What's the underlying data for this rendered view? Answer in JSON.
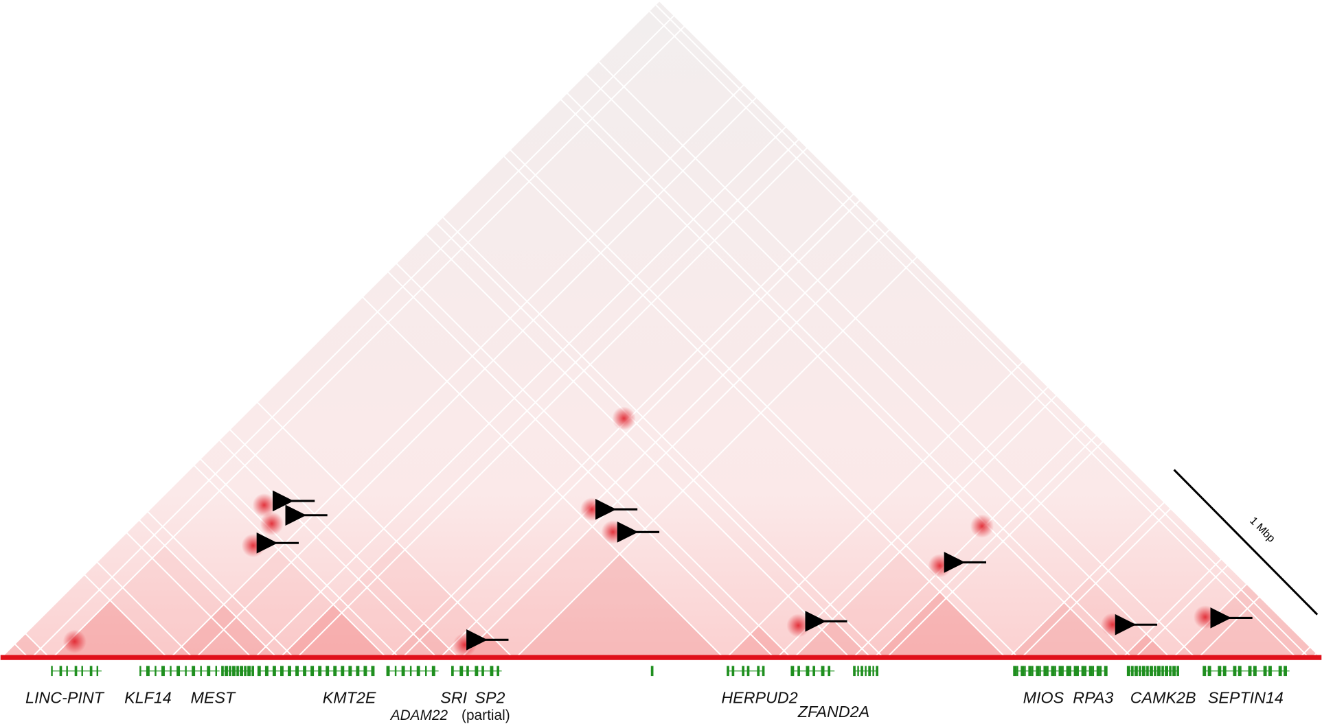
{
  "genes": [
    "LINC-PINT",
    "KLF14",
    "MEST",
    "KMT2E",
    "SRI",
    "SP2",
    "ADAM22",
    "HERPUD2",
    "ZFAND2A",
    "MIOS",
    "RPA3",
    "CAMK2B",
    "SEPTIN14"
  ],
  "partial_note": "(partial)",
  "scale_bar": "1 Mbp"
}
